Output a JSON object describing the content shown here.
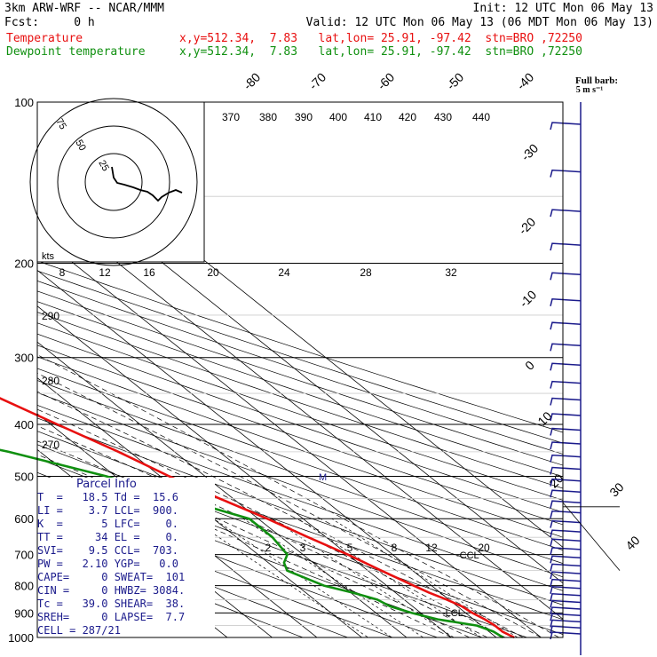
{
  "header": {
    "model": "3km ARW-WRF -- NCAR/MMM",
    "fcst": "Fcst:     0 h",
    "init": "Init: 12 UTC Mon 06 May 13",
    "valid": "Valid: 12 UTC Mon 06 May 13 (06 MDT Mon 06 May 13)",
    "temp_label": "Temperature",
    "temp_info": "x,y=512.34,  7.83   lat,lon= 25.91, -97.42  stn=BRO ,72250",
    "dew_label": "Dewpoint temperature",
    "dew_info": "x,y=512.34,  7.83   lat,lon= 25.91, -97.42  stn=BRO ,72250"
  },
  "barb_legend": {
    "title": "Full barb:",
    "unit": "5 m s⁻¹"
  },
  "colors": {
    "temperature": "#e81010",
    "dewpoint": "#109010",
    "isobar": "#000000",
    "parcel": "#1b1b8c"
  },
  "parcel_info": {
    "title": "Parcel Info",
    "rows": [
      "T  =   18.5 Td =  15.6",
      "LI =    3.7 LCL=  900.",
      "K  =      5 LFC=    0.",
      "TT =     34 EL =    0.",
      "SVI=    9.5 CCL=  703.",
      "PW =   2.10 YGP=   0.0",
      "CAPE=     0 SWEAT=  101",
      "CIN =     0 HWBZ= 3084.",
      "Tc =   39.0 SHEAR=  38.",
      "SREH=     0 LAPSE=  7.7",
      "CELL = 287/21"
    ]
  },
  "chart_data": {
    "type": "line",
    "title": "",
    "xlabel": "",
    "ylabel": "",
    "pressure_levels": [
      100,
      200,
      300,
      400,
      500,
      600,
      700,
      800,
      900,
      1000
    ],
    "isotherm_labels": [
      "-80",
      "-70",
      "-60",
      "-50",
      "-40",
      "-30",
      "-20",
      "-10",
      "0",
      "10",
      "20",
      "30",
      "40"
    ],
    "theta_labels": [
      "370",
      "380",
      "390",
      "400",
      "410",
      "420",
      "430",
      "440"
    ],
    "theta_side_labels": [
      "290",
      "280",
      "270"
    ],
    "hodo_speed_labels": [
      "8",
      "12",
      "16",
      "20",
      "24",
      "28",
      "32"
    ],
    "hodo_ring_labels": [
      "75",
      "50",
      "25"
    ],
    "hodo_unit": "kts",
    "mixing_ratio_labels": [
      "2",
      "3",
      "5",
      "8",
      "12",
      "20"
    ],
    "annotations": [
      "LCL",
      "CCL",
      "M"
    ],
    "series": [
      {
        "name": "Temperature",
        "points": [
          [
            1000,
            24
          ],
          [
            975,
            23
          ],
          [
            950,
            23
          ],
          [
            925,
            22.5
          ],
          [
            900,
            21.5
          ],
          [
            875,
            21
          ],
          [
            850,
            19.5
          ],
          [
            825,
            17.5
          ],
          [
            800,
            16
          ],
          [
            775,
            14.5
          ],
          [
            750,
            13
          ],
          [
            700,
            10
          ],
          [
            650,
            6
          ],
          [
            600,
            2
          ],
          [
            550,
            -3
          ],
          [
            500,
            -8
          ],
          [
            450,
            -12.5
          ],
          [
            400,
            -18.5
          ],
          [
            350,
            -25
          ],
          [
            300,
            -33
          ],
          [
            250,
            -42
          ],
          [
            200,
            -53
          ],
          [
            180,
            -56
          ],
          [
            160,
            -58
          ],
          [
            150,
            -59
          ],
          [
            125,
            -64
          ],
          [
            100,
            -71
          ]
        ]
      },
      {
        "name": "Dewpoint temperature",
        "points": [
          [
            1000,
            21.5
          ],
          [
            975,
            21
          ],
          [
            950,
            19
          ],
          [
            925,
            12
          ],
          [
            900,
            8
          ],
          [
            875,
            5
          ],
          [
            850,
            4
          ],
          [
            825,
            0.5
          ],
          [
            800,
            -4
          ],
          [
            775,
            -6
          ],
          [
            750,
            -8
          ],
          [
            725,
            -6.5
          ],
          [
            700,
            -3.5
          ],
          [
            650,
            -2
          ],
          [
            600,
            -2
          ],
          [
            550,
            -12
          ],
          [
            500,
            -22
          ],
          [
            450,
            -37
          ],
          [
            400,
            -58
          ],
          [
            350,
            -67
          ],
          [
            300,
            -72
          ],
          [
            250,
            -80
          ],
          [
            200,
            -88
          ],
          [
            175,
            -92
          ],
          [
            150,
            -96
          ],
          [
            125,
            -100
          ],
          [
            100,
            -104
          ]
        ]
      }
    ]
  }
}
